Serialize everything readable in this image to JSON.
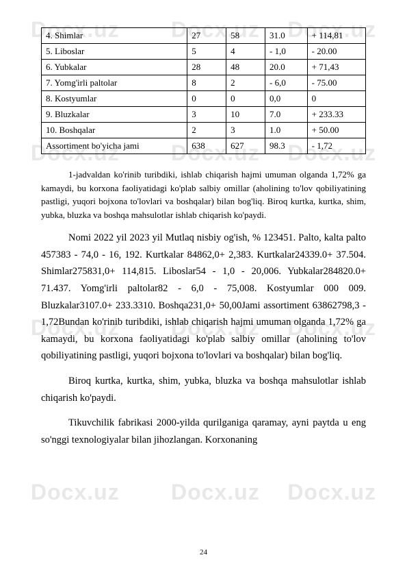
{
  "watermark": "Docx.uz",
  "table": {
    "rows": [
      [
        "4. Shimlar",
        "27",
        "58",
        "31.0",
        "+ 114,81"
      ],
      [
        "5. Liboslar",
        "5",
        "4",
        "- 1,0",
        "- 20.00"
      ],
      [
        "6. Yubkalar",
        "28",
        "48",
        "20.0",
        "+ 71,43"
      ],
      [
        "7. Yomg'irli paltolar",
        "8",
        "2",
        "- 6,0",
        "- 75.00"
      ],
      [
        "8. Kostyumlar",
        "0",
        "0",
        "0,0",
        "0"
      ],
      [
        "9. Bluzkalar",
        "3",
        "10",
        "7.0",
        "+ 233.33"
      ],
      [
        "10. Boshqalar",
        "2",
        "3",
        "1.0",
        "+ 50.00"
      ],
      [
        "Assortiment bo'yicha jami",
        "638",
        "627",
        "98.3",
        "- 1,72"
      ]
    ]
  },
  "paragraphs": {
    "p1": "1-jadvaldan ko'rinib turibdiki, ishlab chiqarish hajmi umuman olganda 1,72% ga kamaydi, bu korxona faoliyatidagi ko'plab salbiy omillar (aholining to'lov qobiliyatining pastligi, yuqori bojxona to'lovlari va boshqalar) bilan bog'liq. Biroq kurtka, kurtka, shim, yubka, bluzka va boshqa mahsulotlar ishlab chiqarish ko'paydi.",
    "p2": "Nomi 2022 yil 2023 yil Mutlaq nisbiy og'ish, % 123451. Palto, kalta palto 457383 - 74,0 - 16, 192. Kurtkalar 84862,0+ 2,383. Kurtkalar24339.0+ 37.504. Shimlar275831,0+ 114,815. Liboslar54 - 1,0 - 20,006. Yubkalar284820.0+ 71.437. Yomg'irli paltolar82 - 6,0 - 75,008. Kostyumlar 000 009. Bluzkalar3107.0+ 233.3310. Boshqa231,0+ 50,00Jami assortiment 63862798,3 - 1,72Bundan ko'rinib turibdiki, ishlab chiqarish hajmi umuman olganda 1,72% ga kamaydi, bu korxona faoliyatidagi ko'plab salbiy omillar (aholining to'lov qobiliyatining pastligi, yuqori bojxona to'lovlari va boshqalar) bilan bog'liq.",
    "p3": "Biroq kurtka, kurtka, shim, yubka, bluzka va boshqa mahsulotlar ishlab chiqarish ko'paydi.",
    "p4": "Tikuvchilik fabrikasi 2000-yilda qurilganiga qaramay, ayni paytda u eng so'nggi texnologiyalar bilan jihozlangan. Korxonaning"
  },
  "pageNumber": "24"
}
